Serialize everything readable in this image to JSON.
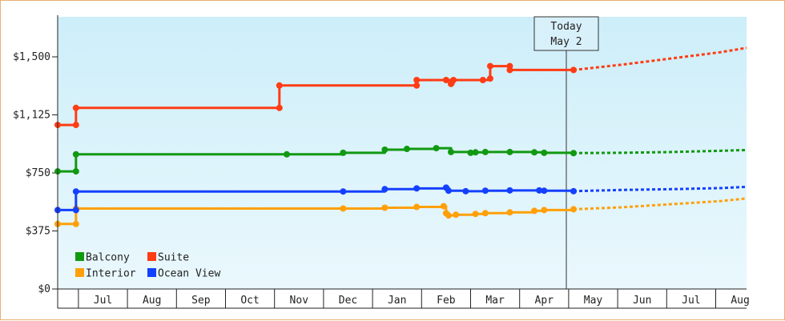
{
  "chart_data": {
    "type": "line",
    "y_tick_labels": [
      "$0",
      "$375",
      "$750",
      "$1,125",
      "$1,500"
    ],
    "y_tick_values": [
      0,
      375,
      750,
      1125,
      1500
    ],
    "ylim": [
      0,
      1500
    ],
    "x_month_labels": [
      "Jul",
      "Aug",
      "Sep",
      "Oct",
      "Nov",
      "Dec",
      "Jan",
      "Feb",
      "Mar",
      "Apr",
      "May",
      "Jun",
      "Jul",
      "Aug"
    ],
    "today_annotation": {
      "line1": "Today",
      "line2": "May 2"
    },
    "legend_position": "bottom-left",
    "grid": false,
    "background_gradient": [
      "#cdeef9",
      "#eaf8fd"
    ],
    "series": [
      {
        "name": "Balcony",
        "color": "#119911",
        "points": [
          [
            -1.0,
            760
          ],
          [
            -0.55,
            760
          ],
          [
            -0.55,
            870
          ],
          [
            3.75,
            870
          ],
          [
            4.9,
            880
          ],
          [
            5.75,
            900
          ],
          [
            6.2,
            905
          ],
          [
            6.8,
            910
          ],
          [
            7.1,
            885
          ],
          [
            7.5,
            880
          ],
          [
            7.6,
            883
          ],
          [
            7.8,
            885
          ],
          [
            8.3,
            885
          ],
          [
            8.8,
            883
          ],
          [
            9.0,
            880
          ],
          [
            9.6,
            878
          ]
        ],
        "forecast": [
          [
            9.6,
            878
          ],
          [
            10.6,
            880
          ],
          [
            11.6,
            885
          ],
          [
            12.6,
            893
          ],
          [
            13.4,
            898
          ]
        ]
      },
      {
        "name": "Suite",
        "color": "#ff3c14",
        "points": [
          [
            -1.0,
            1060
          ],
          [
            -0.55,
            1060
          ],
          [
            -0.55,
            1170
          ],
          [
            3.6,
            1170
          ],
          [
            3.6,
            1315
          ],
          [
            6.4,
            1315
          ],
          [
            6.4,
            1350
          ],
          [
            7.0,
            1350
          ],
          [
            7.1,
            1325
          ],
          [
            7.15,
            1350
          ],
          [
            7.75,
            1350
          ],
          [
            7.9,
            1360
          ],
          [
            7.9,
            1440
          ],
          [
            8.3,
            1440
          ],
          [
            8.3,
            1415
          ],
          [
            9.6,
            1415
          ]
        ],
        "forecast": [
          [
            9.6,
            1415
          ],
          [
            10.6,
            1450
          ],
          [
            11.6,
            1490
          ],
          [
            12.6,
            1530
          ],
          [
            13.4,
            1558
          ]
        ]
      },
      {
        "name": "Interior",
        "color": "#ffa00a",
        "points": [
          [
            -1.0,
            420
          ],
          [
            -0.55,
            420
          ],
          [
            -0.55,
            520
          ],
          [
            4.9,
            520
          ],
          [
            5.75,
            525
          ],
          [
            6.4,
            530
          ],
          [
            6.95,
            535
          ],
          [
            7.0,
            490
          ],
          [
            7.05,
            475
          ],
          [
            7.2,
            480
          ],
          [
            7.6,
            485
          ],
          [
            7.8,
            490
          ],
          [
            8.3,
            495
          ],
          [
            8.8,
            505
          ],
          [
            9.0,
            510
          ],
          [
            9.6,
            515
          ]
        ],
        "forecast": [
          [
            9.6,
            515
          ],
          [
            10.6,
            528
          ],
          [
            11.6,
            548
          ],
          [
            12.6,
            568
          ],
          [
            13.4,
            585
          ]
        ]
      },
      {
        "name": "Ocean View",
        "color": "#1440ff",
        "points": [
          [
            -1.0,
            510
          ],
          [
            -0.55,
            510
          ],
          [
            -0.55,
            630
          ],
          [
            4.9,
            630
          ],
          [
            5.75,
            645
          ],
          [
            6.4,
            650
          ],
          [
            7.0,
            655
          ],
          [
            7.05,
            635
          ],
          [
            7.4,
            632
          ],
          [
            7.8,
            635
          ],
          [
            8.3,
            637
          ],
          [
            8.9,
            637
          ],
          [
            9.0,
            635
          ],
          [
            9.6,
            632
          ]
        ],
        "forecast": [
          [
            9.6,
            632
          ],
          [
            10.6,
            640
          ],
          [
            11.6,
            645
          ],
          [
            12.6,
            652
          ],
          [
            13.4,
            660
          ]
        ]
      }
    ]
  }
}
